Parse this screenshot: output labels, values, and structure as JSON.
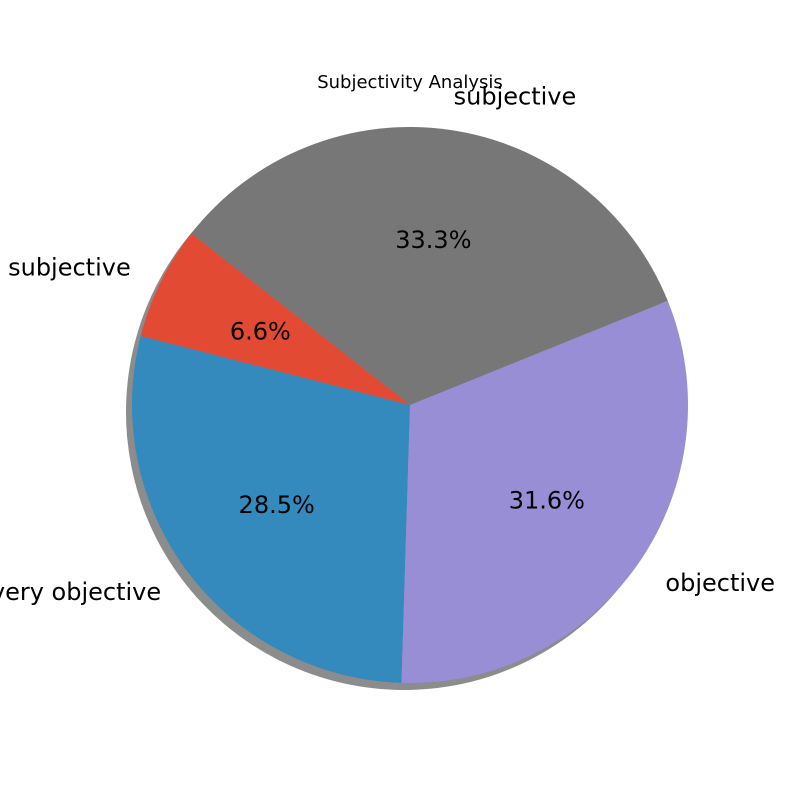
{
  "chart_data": {
    "type": "pie",
    "title": "Subjectivity Analysis",
    "slices": [
      {
        "label": "subjective",
        "pct_label": "33.3%",
        "value": 33.3,
        "color": "#777777"
      },
      {
        "label": "very subjective",
        "pct_label": "6.6%",
        "value": 6.6,
        "color": "#E24A33"
      },
      {
        "label": "very objective",
        "pct_label": "28.5%",
        "value": 28.5,
        "color": "#348ABD"
      },
      {
        "label": "objective",
        "pct_label": "31.6%",
        "value": 31.6,
        "color": "#988ED5"
      }
    ],
    "start_angle_deg": 22,
    "direction": "counterclockwise",
    "shadow": true,
    "legend": "none"
  }
}
